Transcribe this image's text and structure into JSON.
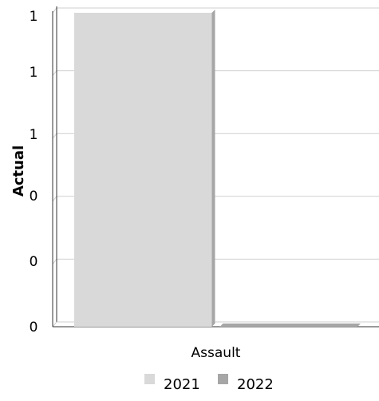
{
  "chart_data": {
    "type": "bar",
    "title": "",
    "xlabel": "",
    "ylabel": "Actual",
    "categories": [
      "Assault"
    ],
    "y_tick_labels": [
      "0",
      "0",
      "0",
      "1",
      "1",
      "1"
    ],
    "ylim": [
      0,
      1.2
    ],
    "grid": true,
    "legend_position": "bottom",
    "series": [
      {
        "name": "2021",
        "values": [
          1.2
        ],
        "color": "#d9d9d9",
        "side_color": "#a6a6a6"
      },
      {
        "name": "2022",
        "values": [
          0
        ],
        "color": "#a6a6a6",
        "side_color": "#8c8c8c"
      }
    ]
  }
}
